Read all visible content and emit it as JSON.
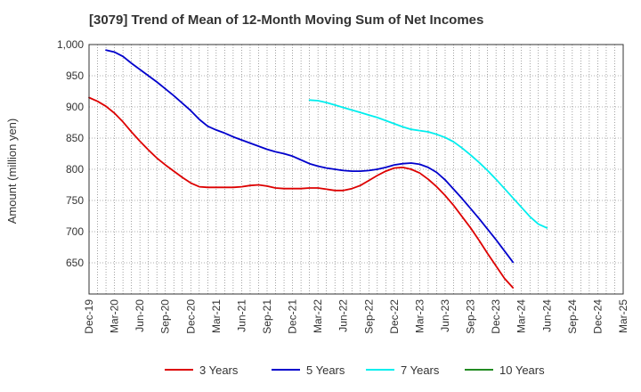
{
  "chart_data": {
    "type": "line",
    "title": "[3079]  Trend of Mean of 12-Month Moving Sum of Net Incomes",
    "ylabel": "Amount (million yen)",
    "xlabel": "",
    "ylim": [
      600,
      1000
    ],
    "yticks": [
      650,
      700,
      750,
      800,
      850,
      900,
      950,
      1000
    ],
    "ytick_labels": [
      "650",
      "700",
      "750",
      "800",
      "850",
      "900",
      "950",
      "1,000"
    ],
    "xticks": [
      "Dec-19",
      "Mar-20",
      "Jun-20",
      "Sep-20",
      "Dec-20",
      "Mar-21",
      "Jun-21",
      "Sep-21",
      "Dec-21",
      "Mar-22",
      "Jun-22",
      "Sep-22",
      "Dec-22",
      "Mar-23",
      "Jun-23",
      "Sep-23",
      "Dec-23",
      "Mar-24",
      "Jun-24",
      "Sep-24",
      "Dec-24",
      "Mar-25"
    ],
    "grid": true,
    "legend_position": "bottom",
    "series": [
      {
        "name": "3 Years",
        "color": "#dd0000",
        "start": "Dec-19",
        "values": [
          915,
          909,
          901,
          890,
          876,
          860,
          845,
          831,
          818,
          807,
          797,
          787,
          778,
          772,
          771,
          771,
          771,
          771,
          772,
          774,
          775,
          773,
          770,
          769,
          769,
          769,
          770,
          770,
          768,
          766,
          766,
          769,
          774,
          782,
          790,
          797,
          802,
          803,
          800,
          794,
          784,
          772,
          758,
          742,
          724,
          706,
          686,
          665,
          645,
          625,
          610
        ]
      },
      {
        "name": "5 Years",
        "color": "#0000cc",
        "start": "Feb-20",
        "values": [
          991,
          988,
          981,
          970,
          960,
          950,
          940,
          929,
          918,
          906,
          894,
          880,
          869,
          863,
          858,
          852,
          847,
          842,
          837,
          832,
          828,
          825,
          821,
          815,
          809,
          805,
          802,
          800,
          798,
          797,
          797,
          798,
          800,
          803,
          807,
          809,
          810,
          808,
          803,
          795,
          783,
          768,
          753,
          737,
          721,
          704,
          687,
          669,
          651
        ]
      },
      {
        "name": "7 Years",
        "color": "#00eeee",
        "start": "Feb-22",
        "values": [
          911,
          910,
          907,
          903,
          899,
          895,
          891,
          887,
          883,
          878,
          873,
          868,
          864,
          862,
          860,
          856,
          851,
          844,
          834,
          823,
          811,
          798,
          784,
          769,
          754,
          739,
          724,
          712,
          706
        ]
      },
      {
        "name": "10 Years",
        "color": "#228B22",
        "start": "Dec-19",
        "values": []
      }
    ]
  }
}
